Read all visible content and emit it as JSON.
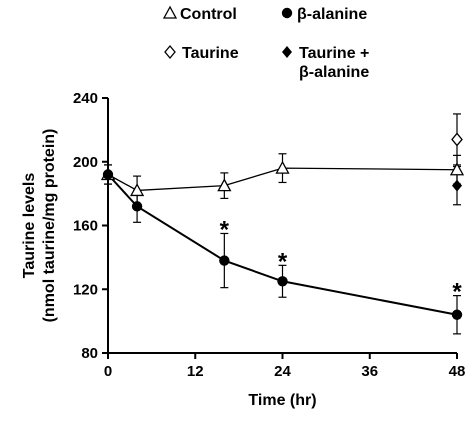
{
  "chart_data": {
    "type": "line",
    "xlabel": "Time (hr)",
    "ylabel": [
      "Taurine levels",
      "(nmol taurine/mg protein)"
    ],
    "xlim": [
      0,
      48
    ],
    "ylim": [
      80,
      240
    ],
    "xticks": [
      0,
      12,
      24,
      36,
      48
    ],
    "yticks": [
      80,
      120,
      160,
      200,
      240
    ],
    "grid": false,
    "legend_position": "top",
    "series": [
      {
        "name": "Control",
        "marker": "open-triangle",
        "connected": true,
        "points": [
          {
            "x": 0,
            "y": 192,
            "err": 6
          },
          {
            "x": 4,
            "y": 182,
            "err": 9
          },
          {
            "x": 16,
            "y": 185,
            "err": 8
          },
          {
            "x": 24,
            "y": 196,
            "err": 9
          },
          {
            "x": 48,
            "y": 195,
            "err": 9
          }
        ]
      },
      {
        "name": "β-alanine",
        "marker": "filled-circle",
        "connected": true,
        "points": [
          {
            "x": 0,
            "y": 192,
            "err": 6
          },
          {
            "x": 4,
            "y": 172,
            "err": 10
          },
          {
            "x": 16,
            "y": 138,
            "err": 17
          },
          {
            "x": 24,
            "y": 125,
            "err": 10
          },
          {
            "x": 48,
            "y": 104,
            "err": 12
          }
        ]
      },
      {
        "name": "Taurine",
        "marker": "open-diamond",
        "connected": false,
        "points": [
          {
            "x": 48,
            "y": 214,
            "err": 16
          }
        ]
      },
      {
        "name": "Taurine + β-alanine",
        "label_lines": [
          "Taurine +",
          "β-alanine"
        ],
        "marker": "filled-diamond",
        "connected": false,
        "points": [
          {
            "x": 48,
            "y": 185,
            "err": 12
          }
        ]
      }
    ],
    "annotations": [
      {
        "text": "*",
        "x": 16
      },
      {
        "text": "*",
        "x": 24
      },
      {
        "text": "*",
        "x": 48
      }
    ]
  }
}
